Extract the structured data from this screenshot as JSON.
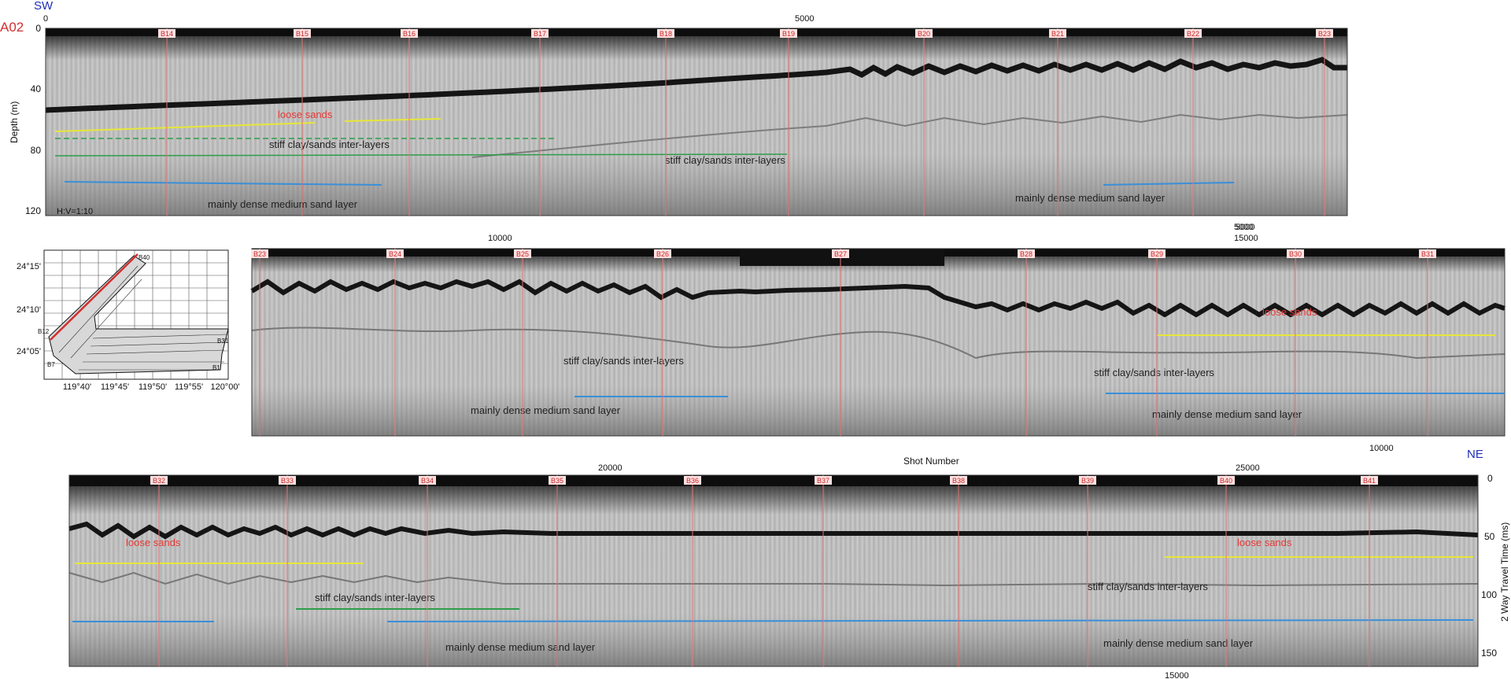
{
  "header": {
    "sw": "SW",
    "ne": "NE",
    "line_id": "A02",
    "shot_number_label": "Shot Number",
    "depth_label": "Depth (m)",
    "twt_label": "2 Way Travel Time (ms)",
    "scale_note": "H:V=1:10"
  },
  "colors": {
    "background": "#ffffff",
    "seismic_mid": "#b9b9b9",
    "seismic_dark": "#1a1a1a",
    "borehole_line": "#e57373",
    "borehole_label_bg": "#ffe1e1",
    "borehole_label_text": "#c62828",
    "loose_sands_text": "#e53935",
    "loose_sands_line": "#e6e63a",
    "stiff_clay_line": "#2e9d4a",
    "dense_sand_line": "#3a8fd9",
    "title_blue": "#1f2fb5",
    "track_red": "#d32f2f"
  },
  "panel1": {
    "top_axis_ticks": [
      "0",
      "5000"
    ],
    "bottom_axis_ticks": [
      "5000"
    ],
    "depth_ticks": [
      "0",
      "40",
      "80",
      "120"
    ],
    "boreholes": [
      "B14",
      "B15",
      "B16",
      "B17",
      "B18",
      "B19",
      "B20",
      "B21",
      "B22",
      "B23"
    ],
    "labels": {
      "loose": "loose sands",
      "stiff_1": "stiff clay/sands inter-layers",
      "stiff_2": "stiff clay/sands inter-layers",
      "dense_1": "mainly dense medium sand layer",
      "dense_2": "mainly dense medium sand layer"
    }
  },
  "panel2": {
    "top_axis_ticks": [
      "10000",
      "5000",
      "15000"
    ],
    "bottom_axis_ticks": [
      "10000"
    ],
    "boreholes": [
      "B23",
      "B24",
      "B25",
      "B26",
      "B27",
      "B28",
      "B29",
      "B30",
      "B31"
    ],
    "labels": {
      "loose": "loose sands",
      "stiff_1": "stiff clay/sands inter-layers",
      "stiff_2": "stiff clay/sands inter-layers",
      "dense_1": "mainly dense medium sand layer",
      "dense_2": "mainly dense medium sand layer"
    }
  },
  "panel3": {
    "top_axis_ticks": [
      "20000",
      "25000"
    ],
    "bottom_axis_ticks": [
      "15000"
    ],
    "twt_ticks": [
      "0",
      "50",
      "100",
      "150"
    ],
    "boreholes": [
      "B32",
      "B33",
      "B34",
      "B35",
      "B36",
      "B37",
      "B38",
      "B39",
      "B40",
      "B41"
    ],
    "labels": {
      "loose_1": "loose sands",
      "loose_2": "loose sands",
      "stiff_1": "stiff clay/sands inter-layers",
      "stiff_2": "stiff clay/sands inter-layers",
      "dense_1": "mainly dense medium sand layer",
      "dense_2": "mainly dense medium sand layer"
    }
  },
  "map": {
    "lat_ticks": [
      "24°15'",
      "24°10'",
      "24°05'"
    ],
    "lon_ticks": [
      "119°40'",
      "119°45'",
      "119°50'",
      "119°55'",
      "120°00'"
    ],
    "station_labels": [
      "B1",
      "B7",
      "B12",
      "B40",
      "B31"
    ]
  }
}
